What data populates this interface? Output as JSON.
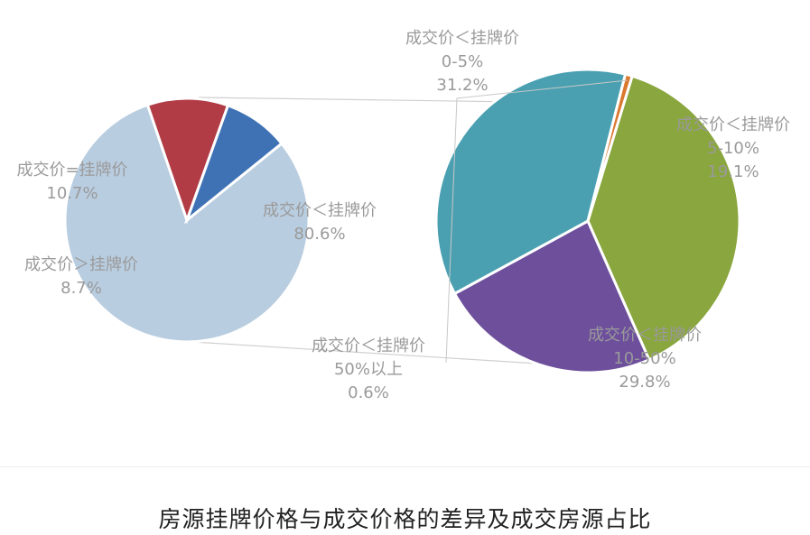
{
  "caption": "房源挂牌价格与成交价格的差异及成交房源占比",
  "chart_data": [
    {
      "type": "pie",
      "chart": "main",
      "slices": [
        {
          "label": "成交价＜挂牌价",
          "percent": 80.6,
          "value_text": "80.6%",
          "color": "#b9cde0"
        },
        {
          "label": "成交价=挂牌价",
          "percent": 10.7,
          "value_text": "10.7%",
          "color": "#b23c46"
        },
        {
          "label": "成交价＞挂牌价",
          "percent": 8.7,
          "value_text": "8.7%",
          "color": "#3f72b5"
        }
      ]
    },
    {
      "type": "pie",
      "chart": "breakdown",
      "breakdown_of": "成交价＜挂牌价",
      "slices": [
        {
          "label": "成交价＜挂牌价",
          "range": "0-5%",
          "percent": 31.2,
          "value_text": "31.2%",
          "color": "#8aa63e"
        },
        {
          "label": "成交价＜挂牌价",
          "range": "5-10%",
          "percent": 19.1,
          "value_text": "19.1%",
          "color": "#6d4f9c"
        },
        {
          "label": "成交价＜挂牌价",
          "range": "10-50%",
          "percent": 29.8,
          "value_text": "29.8%",
          "color": "#4aa0b1"
        },
        {
          "label": "成交价＜挂牌价",
          "range": "50%以上",
          "percent": 0.6,
          "value_text": "0.6%",
          "color": "#d9782e"
        }
      ]
    }
  ]
}
